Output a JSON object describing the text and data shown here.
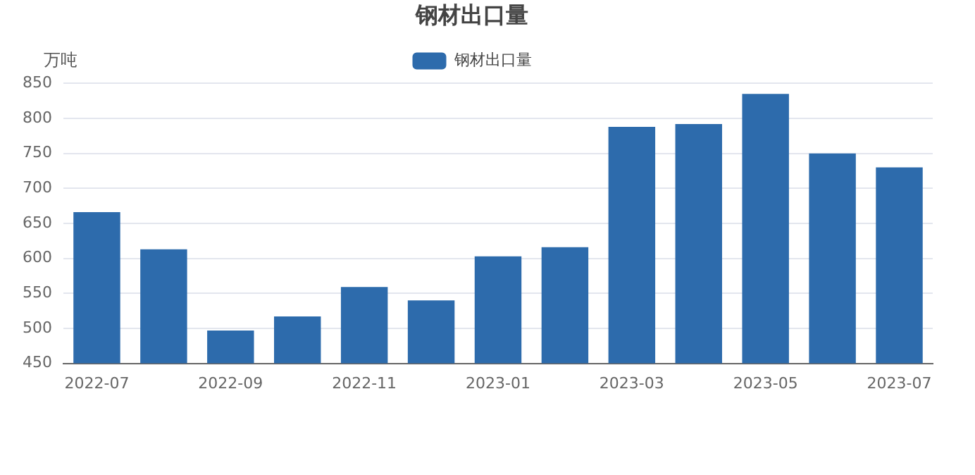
{
  "chart_data": {
    "type": "bar",
    "title": "钢材出口量",
    "ylabel": "万吨",
    "categories": [
      "2022-07",
      null,
      "2022-09",
      null,
      "2022-11",
      null,
      "2023-01",
      null,
      "2023-03",
      null,
      "2023-05",
      null,
      "2023-07"
    ],
    "series": [
      {
        "name": "钢材出口量",
        "color": "#2d6bac",
        "values": [
          666,
          613,
          497,
          517,
          559,
          540,
          603,
          616,
          788,
          792,
          835,
          750,
          730
        ]
      }
    ],
    "ylim": [
      450,
      850
    ],
    "yticks": [
      450,
      500,
      550,
      600,
      650,
      700,
      750,
      800,
      850
    ],
    "grid": "y",
    "legend": "top"
  }
}
